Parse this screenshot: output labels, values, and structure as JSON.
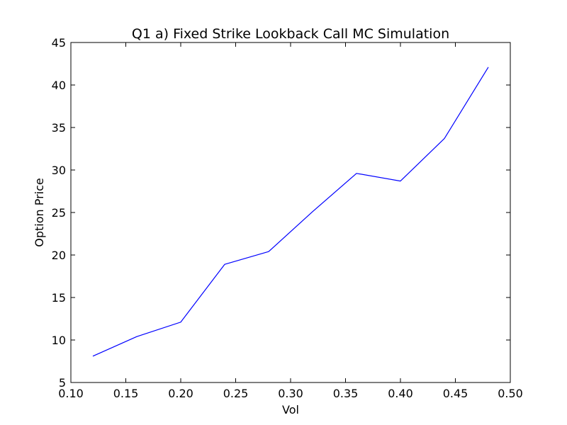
{
  "chart_data": {
    "type": "line",
    "title": "Q1 a) Fixed Strike Lookback Call MC Simulation",
    "xlabel": "Vol",
    "ylabel": "Option Price",
    "xlim": [
      0.1,
      0.5
    ],
    "ylim": [
      5,
      45
    ],
    "xticks": [
      "0.10",
      "0.15",
      "0.20",
      "0.25",
      "0.30",
      "0.35",
      "0.40",
      "0.45",
      "0.50"
    ],
    "yticks": [
      "5",
      "10",
      "15",
      "20",
      "25",
      "30",
      "35",
      "40",
      "45"
    ],
    "grid": false,
    "series": [
      {
        "color": "#0000ff",
        "x": [
          0.12,
          0.16,
          0.2,
          0.24,
          0.28,
          0.32,
          0.36,
          0.4,
          0.44,
          0.48
        ],
        "y": [
          8.1,
          10.4,
          12.1,
          18.9,
          20.4,
          25.1,
          29.6,
          28.7,
          33.7,
          42.1
        ]
      }
    ]
  }
}
